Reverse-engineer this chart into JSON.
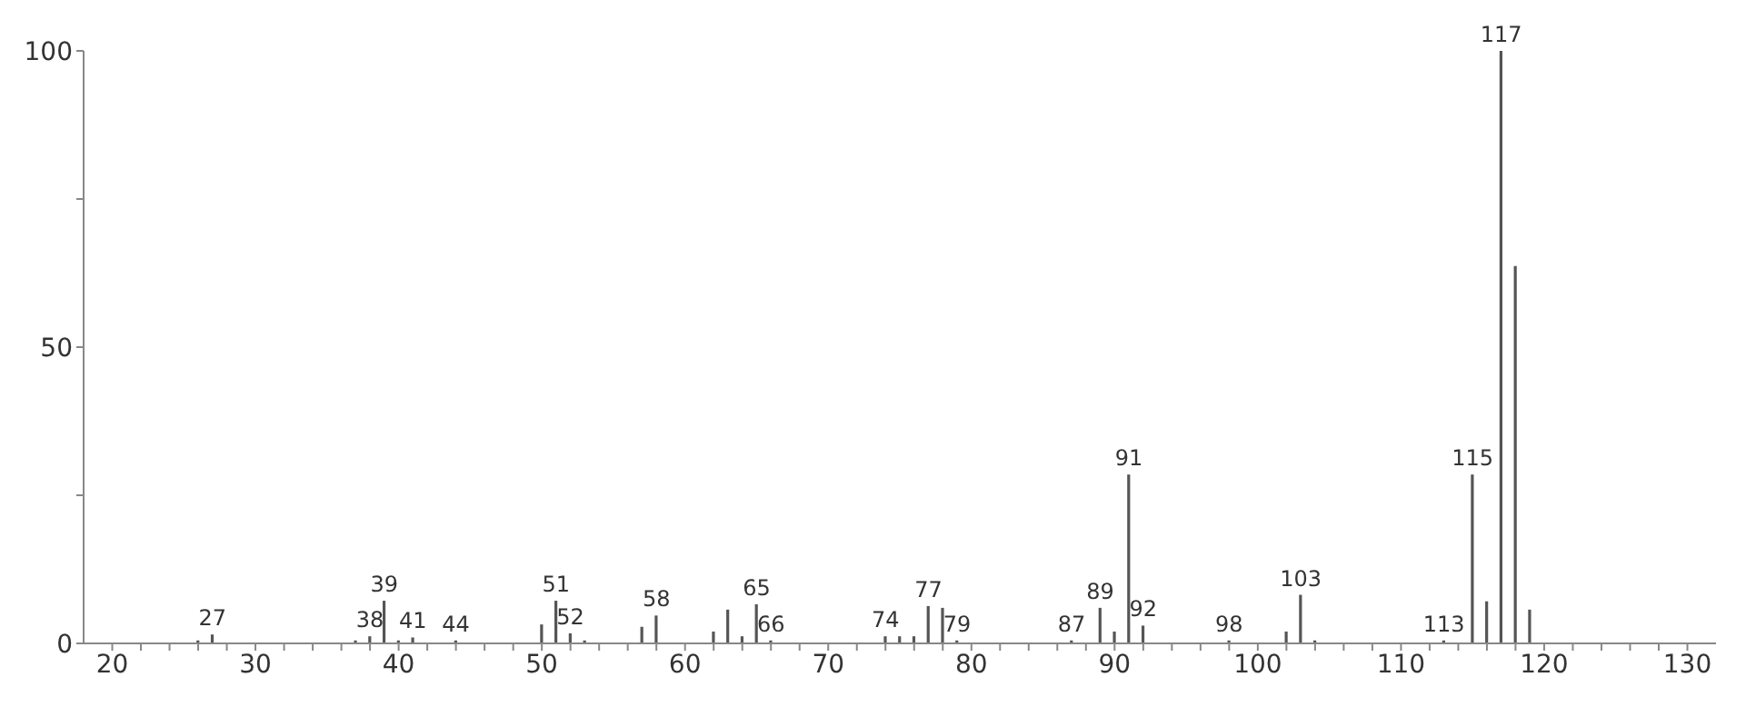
{
  "chart_data": {
    "type": "bar",
    "x": [
      26,
      27,
      37,
      38,
      39,
      40,
      41,
      44,
      50,
      51,
      52,
      53,
      57,
      58,
      62,
      63,
      64,
      65,
      66,
      74,
      75,
      76,
      77,
      78,
      79,
      87,
      89,
      90,
      91,
      92,
      98,
      102,
      103,
      104,
      113,
      115,
      116,
      117,
      118,
      119
    ],
    "values": [
      0.5,
      1.5,
      0.5,
      1.2,
      7.2,
      0.5,
      1.0,
      0.5,
      3.2,
      7.2,
      1.7,
      0.5,
      2.8,
      4.7,
      2.0,
      5.7,
      1.2,
      6.6,
      0.5,
      1.2,
      1.2,
      1.2,
      6.3,
      6.0,
      0.5,
      0.5,
      6.0,
      2.0,
      28.5,
      3.0,
      0.5,
      2.0,
      8.2,
      0.5,
      0.5,
      28.5,
      7.1,
      100,
      63.7,
      5.7
    ],
    "color": "#555555",
    "xlim": [
      18,
      132
    ],
    "xticks": [
      20,
      {
        "value": 22,
        "label": null
      },
      {
        "value": 24,
        "label": null
      },
      {
        "value": 26,
        "label": null
      },
      {
        "value": 28,
        "label": null
      },
      30,
      {
        "value": 32,
        "label": null
      },
      {
        "value": 34,
        "label": null
      },
      {
        "value": 36,
        "label": null
      },
      {
        "value": 38,
        "label": null
      },
      40,
      {
        "value": 42,
        "label": null
      },
      {
        "value": 44,
        "label": null
      },
      {
        "value": 46,
        "label": null
      },
      {
        "value": 48,
        "label": null
      },
      50,
      {
        "value": 52,
        "label": null
      },
      {
        "value": 54,
        "label": null
      },
      {
        "value": 56,
        "label": null
      },
      {
        "value": 58,
        "label": null
      },
      60,
      {
        "value": 62,
        "label": null
      },
      {
        "value": 64,
        "label": null
      },
      {
        "value": 66,
        "label": null
      },
      {
        "value": 68,
        "label": null
      },
      70,
      {
        "value": 72,
        "label": null
      },
      {
        "value": 74,
        "label": null
      },
      {
        "value": 76,
        "label": null
      },
      {
        "value": 78,
        "label": null
      },
      80,
      {
        "value": 82,
        "label": null
      },
      {
        "value": 84,
        "label": null
      },
      {
        "value": 86,
        "label": null
      },
      {
        "value": 88,
        "label": null
      },
      90,
      {
        "value": 92,
        "label": null
      },
      {
        "value": 94,
        "label": null
      },
      {
        "value": 96,
        "label": null
      },
      {
        "value": 98,
        "label": null
      },
      100,
      {
        "value": 102,
        "label": null
      },
      {
        "value": 104,
        "label": null
      },
      {
        "value": 106,
        "label": null
      },
      {
        "value": 108,
        "label": null
      },
      110,
      {
        "value": 112,
        "label": null
      },
      {
        "value": 114,
        "label": null
      },
      {
        "value": 116,
        "label": null
      },
      {
        "value": 118,
        "label": null
      },
      120,
      {
        "value": 122,
        "label": null
      },
      {
        "value": 124,
        "label": null
      },
      {
        "value": 126,
        "label": null
      },
      {
        "value": 128,
        "label": null
      },
      130
    ],
    "ylim": [
      0,
      100
    ],
    "yticks": [
      0,
      {
        "value": 25,
        "label": null
      },
      50,
      {
        "value": 75,
        "label": null
      },
      100
    ],
    "grid": false,
    "annotations": [
      {
        "text": "27",
        "x": 27,
        "y": 1.5
      },
      {
        "text": "38",
        "x": 38,
        "y": 1.2
      },
      {
        "text": "39",
        "x": 39,
        "y": 7.2
      },
      {
        "text": "41",
        "x": 41,
        "y": 1.0
      },
      {
        "text": "44",
        "x": 44,
        "y": 0.5
      },
      {
        "text": "51",
        "x": 51,
        "y": 7.2
      },
      {
        "text": "52",
        "x": 52,
        "y": 1.7
      },
      {
        "text": "58",
        "x": 58,
        "y": 4.7
      },
      {
        "text": "65",
        "x": 65,
        "y": 6.6
      },
      {
        "text": "66",
        "x": 66,
        "y": 0.5
      },
      {
        "text": "74",
        "x": 74,
        "y": 1.2
      },
      {
        "text": "77",
        "x": 77,
        "y": 6.3
      },
      {
        "text": "79",
        "x": 79,
        "y": 0.5
      },
      {
        "text": "87",
        "x": 87,
        "y": 0.5
      },
      {
        "text": "89",
        "x": 89,
        "y": 6.0
      },
      {
        "text": "91",
        "x": 91,
        "y": 28.5
      },
      {
        "text": "92",
        "x": 92,
        "y": 3.0
      },
      {
        "text": "98",
        "x": 98,
        "y": 0.5
      },
      {
        "text": "103",
        "x": 103,
        "y": 8.2
      },
      {
        "text": "113",
        "x": 113,
        "y": 0.5
      },
      {
        "text": "115",
        "x": 115,
        "y": 28.5
      },
      {
        "text": "117",
        "x": 117,
        "y": 100
      }
    ]
  }
}
